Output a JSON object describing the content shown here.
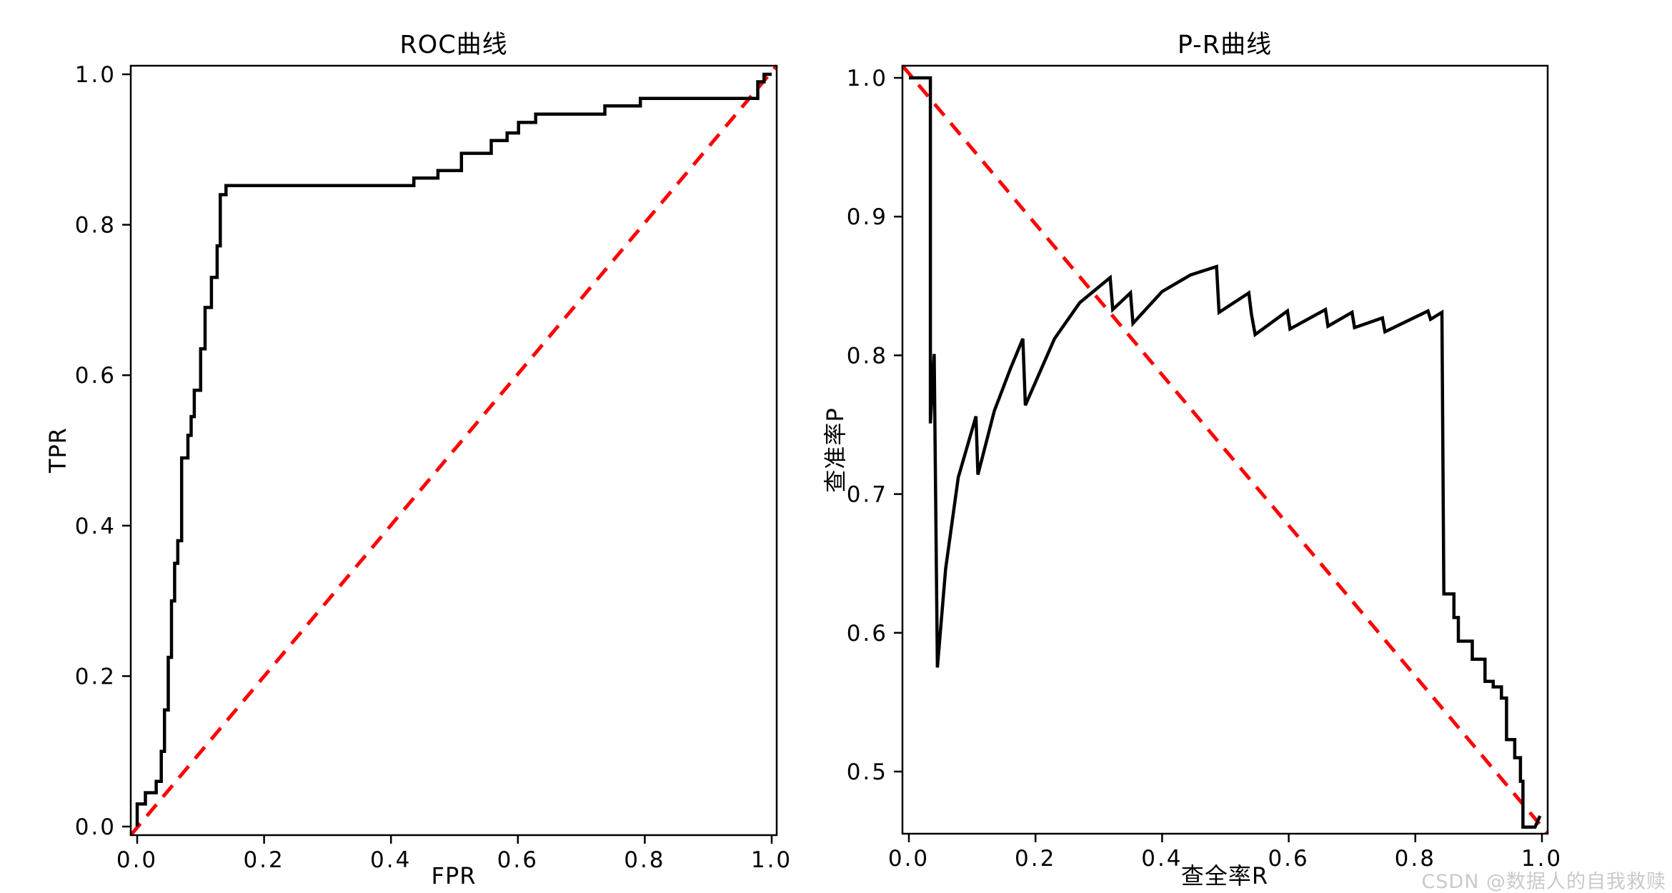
{
  "watermark": {
    "text": "CSDN @数据人的自我救赎",
    "color": "#c9c9c9"
  },
  "colors": {
    "curve": "#000000",
    "reference_line": "#ff0000",
    "background": "#ffffff"
  },
  "chart_data": [
    {
      "type": "line",
      "title": "ROC曲线",
      "xlabel": "FPR",
      "ylabel": "TPR",
      "xlim": [
        0.0,
        1.0
      ],
      "ylim": [
        0.0,
        1.0
      ],
      "grid": false,
      "legend": "none",
      "xticks": {
        "values": [
          0.0,
          0.2,
          0.4,
          0.6,
          0.8,
          1.0
        ],
        "labels": [
          "0.0",
          "0.2",
          "0.4",
          "0.6",
          "0.8",
          "1.0"
        ]
      },
      "yticks": {
        "values": [
          0.0,
          0.2,
          0.4,
          0.6,
          0.8,
          1.0
        ],
        "labels": [
          "0.0",
          "0.2",
          "0.4",
          "0.6",
          "0.8",
          "1.0"
        ]
      },
      "series": [
        {
          "id": "roc-curve",
          "color": "#000000",
          "line_style": "solid",
          "points": [
            [
              0.0,
              0.0
            ],
            [
              0.0,
              0.03
            ],
            [
              0.013,
              0.03
            ],
            [
              0.013,
              0.045
            ],
            [
              0.03,
              0.045
            ],
            [
              0.03,
              0.06
            ],
            [
              0.038,
              0.06
            ],
            [
              0.038,
              0.1
            ],
            [
              0.043,
              0.1
            ],
            [
              0.043,
              0.155
            ],
            [
              0.049,
              0.155
            ],
            [
              0.049,
              0.225
            ],
            [
              0.054,
              0.225
            ],
            [
              0.054,
              0.3
            ],
            [
              0.059,
              0.3
            ],
            [
              0.059,
              0.35
            ],
            [
              0.064,
              0.35
            ],
            [
              0.064,
              0.38
            ],
            [
              0.07,
              0.38
            ],
            [
              0.07,
              0.49
            ],
            [
              0.08,
              0.49
            ],
            [
              0.08,
              0.52
            ],
            [
              0.085,
              0.52
            ],
            [
              0.085,
              0.545
            ],
            [
              0.09,
              0.545
            ],
            [
              0.09,
              0.58
            ],
            [
              0.1,
              0.58
            ],
            [
              0.1,
              0.635
            ],
            [
              0.107,
              0.635
            ],
            [
              0.107,
              0.69
            ],
            [
              0.117,
              0.69
            ],
            [
              0.117,
              0.73
            ],
            [
              0.126,
              0.73
            ],
            [
              0.126,
              0.772
            ],
            [
              0.131,
              0.772
            ],
            [
              0.131,
              0.84
            ],
            [
              0.14,
              0.84
            ],
            [
              0.14,
              0.852
            ],
            [
              0.436,
              0.852
            ],
            [
              0.436,
              0.862
            ],
            [
              0.474,
              0.862
            ],
            [
              0.474,
              0.872
            ],
            [
              0.511,
              0.872
            ],
            [
              0.511,
              0.895
            ],
            [
              0.558,
              0.895
            ],
            [
              0.558,
              0.912
            ],
            [
              0.583,
              0.912
            ],
            [
              0.583,
              0.922
            ],
            [
              0.601,
              0.922
            ],
            [
              0.601,
              0.936
            ],
            [
              0.628,
              0.936
            ],
            [
              0.628,
              0.947
            ],
            [
              0.737,
              0.947
            ],
            [
              0.737,
              0.958
            ],
            [
              0.793,
              0.958
            ],
            [
              0.793,
              0.968
            ],
            [
              0.978,
              0.968
            ],
            [
              0.978,
              0.99
            ],
            [
              0.988,
              0.99
            ],
            [
              0.988,
              1.0
            ],
            [
              1.0,
              1.0
            ]
          ]
        },
        {
          "id": "diagonal-reference",
          "color": "#ff0000",
          "line_style": "dashed",
          "box_diagonal": "rising",
          "points": [
            [
              0.0,
              0.0
            ],
            [
              1.0,
              1.0
            ]
          ]
        }
      ]
    },
    {
      "type": "line",
      "title": "P-R曲线",
      "xlabel": "查全率R",
      "ylabel": "查准率P",
      "xlim": [
        0.0,
        1.0
      ],
      "ylim": [
        0.455,
        1.0
      ],
      "grid": false,
      "legend": "none",
      "xticks": {
        "values": [
          0.0,
          0.2,
          0.4,
          0.6,
          0.8,
          1.0
        ],
        "labels": [
          "0.0",
          "0.2",
          "0.4",
          "0.6",
          "0.8",
          "1.0"
        ]
      },
      "yticks": {
        "values": [
          1.0,
          0.9,
          0.8,
          0.7,
          0.6,
          0.5
        ],
        "labels": [
          "1.0",
          "0.9",
          "0.8",
          "0.7",
          "0.6",
          "0.5"
        ]
      },
      "series": [
        {
          "id": "pr-curve",
          "color": "#000000",
          "line_style": "solid",
          "points": [
            [
              0.0,
              1.0
            ],
            [
              0.034,
              1.0
            ],
            [
              0.034,
              0.751
            ],
            [
              0.04,
              0.801
            ],
            [
              0.045,
              0.575
            ],
            [
              0.058,
              0.646
            ],
            [
              0.078,
              0.712
            ],
            [
              0.106,
              0.756
            ],
            [
              0.109,
              0.714
            ],
            [
              0.135,
              0.76
            ],
            [
              0.16,
              0.79
            ],
            [
              0.18,
              0.812
            ],
            [
              0.184,
              0.764
            ],
            [
              0.23,
              0.812
            ],
            [
              0.27,
              0.838
            ],
            [
              0.318,
              0.856
            ],
            [
              0.322,
              0.833
            ],
            [
              0.35,
              0.845
            ],
            [
              0.354,
              0.823
            ],
            [
              0.4,
              0.846
            ],
            [
              0.445,
              0.858
            ],
            [
              0.486,
              0.864
            ],
            [
              0.49,
              0.831
            ],
            [
              0.537,
              0.845
            ],
            [
              0.541,
              0.83
            ],
            [
              0.547,
              0.815
            ],
            [
              0.598,
              0.832
            ],
            [
              0.602,
              0.819
            ],
            [
              0.658,
              0.833
            ],
            [
              0.662,
              0.821
            ],
            [
              0.7,
              0.831
            ],
            [
              0.704,
              0.82
            ],
            [
              0.748,
              0.827
            ],
            [
              0.752,
              0.817
            ],
            [
              0.82,
              0.832
            ],
            [
              0.824,
              0.826
            ],
            [
              0.842,
              0.831
            ],
            [
              0.845,
              0.628
            ],
            [
              0.861,
              0.628
            ],
            [
              0.861,
              0.611
            ],
            [
              0.868,
              0.611
            ],
            [
              0.868,
              0.594
            ],
            [
              0.89,
              0.594
            ],
            [
              0.89,
              0.581
            ],
            [
              0.91,
              0.581
            ],
            [
              0.91,
              0.565
            ],
            [
              0.923,
              0.565
            ],
            [
              0.923,
              0.561
            ],
            [
              0.936,
              0.561
            ],
            [
              0.936,
              0.553
            ],
            [
              0.944,
              0.553
            ],
            [
              0.944,
              0.523
            ],
            [
              0.957,
              0.523
            ],
            [
              0.957,
              0.51
            ],
            [
              0.966,
              0.51
            ],
            [
              0.966,
              0.493
            ],
            [
              0.97,
              0.493
            ],
            [
              0.97,
              0.46
            ],
            [
              0.989,
              0.46
            ],
            [
              0.997,
              0.468
            ]
          ]
        },
        {
          "id": "diagonal-reference",
          "color": "#ff0000",
          "line_style": "dashed",
          "box_diagonal": "falling",
          "points": [
            [
              0.0,
              1.0
            ],
            [
              1.0,
              0.455
            ]
          ]
        }
      ]
    }
  ]
}
